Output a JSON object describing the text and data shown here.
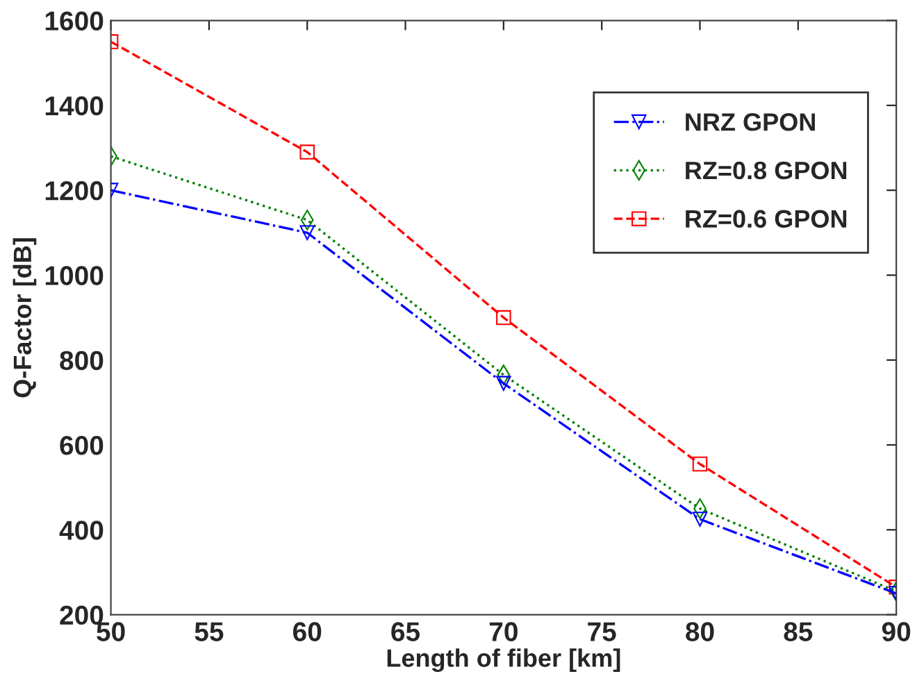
{
  "chart_data": {
    "type": "line",
    "xlabel": "Length of fiber [km]",
    "ylabel": "Q-Factor [dB]",
    "x": [
      50,
      60,
      70,
      80,
      90
    ],
    "series": [
      {
        "name": "NRZ GPON",
        "color": "#0000ff",
        "values": [
          1200,
          1100,
          745,
          425,
          250
        ],
        "marker": "triangle_down",
        "line_style": "dashdot"
      },
      {
        "name": "RZ=0.8 GPON",
        "color": "#008000",
        "values": [
          1280,
          1130,
          765,
          450,
          255
        ],
        "marker": "diamond",
        "line_style": "dotted"
      },
      {
        "name": "RZ=0.6 GPON",
        "color": "#ff0000",
        "values": [
          1550,
          1290,
          900,
          555,
          265
        ],
        "marker": "square",
        "line_style": "dashed"
      }
    ],
    "xlim": [
      50,
      90
    ],
    "xticks": [
      50,
      55,
      60,
      65,
      70,
      75,
      80,
      85,
      90
    ],
    "ylim": [
      200,
      1600
    ],
    "yticks": [
      200,
      400,
      600,
      800,
      1000,
      1200,
      1400,
      1600
    ],
    "grid": false,
    "legend": "top right"
  }
}
